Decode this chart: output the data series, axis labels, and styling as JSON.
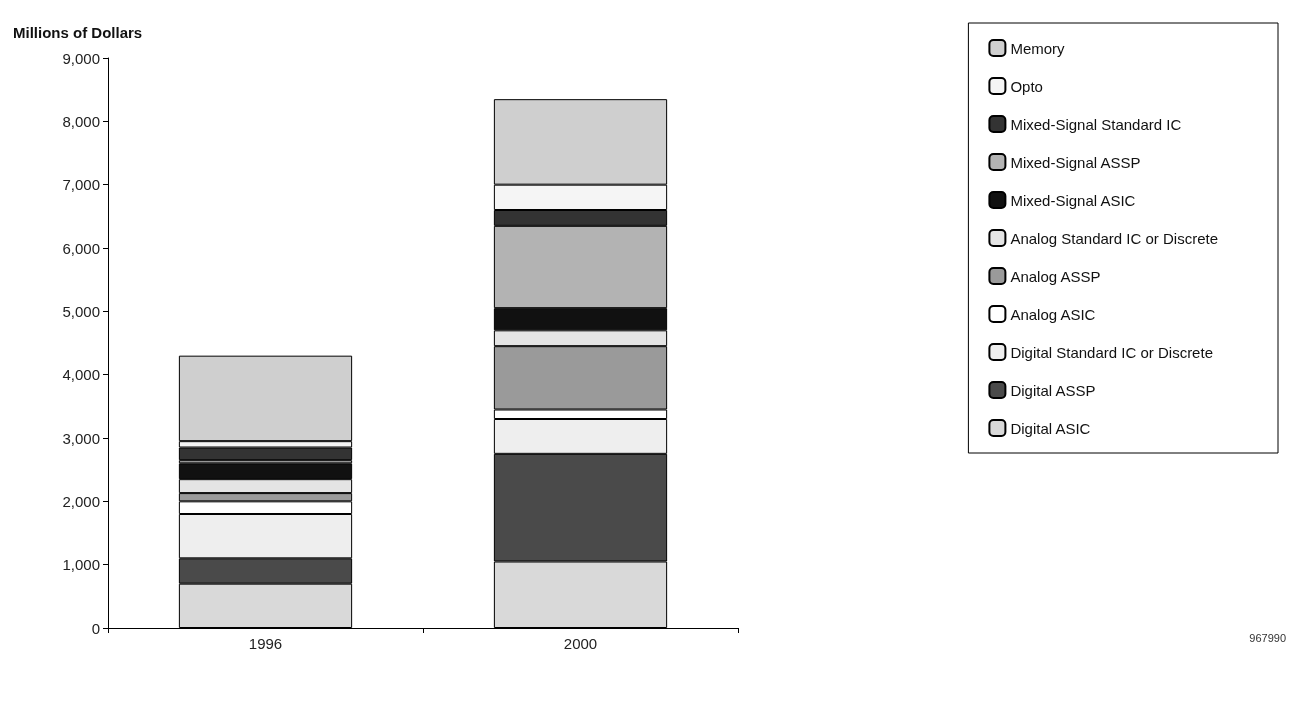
{
  "chart_data": {
    "type": "bar",
    "stacked": true,
    "ylabel": "Millions of Dollars",
    "categories": [
      "1996",
      "2000"
    ],
    "series": [
      {
        "name": "Digital ASIC",
        "color": "#d9d9d9",
        "values": [
          700,
          1050
        ]
      },
      {
        "name": "Digital ASSP",
        "color": "#4a4a4a",
        "values": [
          400,
          1700
        ]
      },
      {
        "name": "Digital Standard IC or Discrete",
        "color": "#eeeeee",
        "values": [
          700,
          550
        ]
      },
      {
        "name": "Analog ASIC",
        "color": "#ffffff",
        "values": [
          200,
          150
        ]
      },
      {
        "name": "Analog ASSP",
        "color": "#9a9a9a",
        "values": [
          130,
          1000
        ]
      },
      {
        "name": "Analog Standard IC or Discrete",
        "color": "#e4e4e4",
        "values": [
          220,
          250
        ]
      },
      {
        "name": "Mixed-Signal ASIC",
        "color": "#111111",
        "values": [
          250,
          350
        ]
      },
      {
        "name": "Mixed-Signal ASSP",
        "color": "#b3b3b3",
        "values": [
          50,
          1300
        ]
      },
      {
        "name": "Mixed-Signal Standard IC",
        "color": "#333333",
        "values": [
          200,
          250
        ]
      },
      {
        "name": "Opto",
        "color": "#f5f5f5",
        "values": [
          100,
          400
        ]
      },
      {
        "name": "Memory",
        "color": "#cfcfcf",
        "values": [
          1350,
          1350
        ]
      }
    ],
    "ylim": [
      0,
      9000
    ],
    "yticks": [
      0,
      {
        "value": 1000,
        "label": "1,000"
      },
      {
        "value": 2000,
        "label": "2,000"
      },
      {
        "value": 3000,
        "label": "3,000"
      },
      {
        "value": 4000,
        "label": "4,000"
      },
      {
        "value": 5000,
        "label": "5,000"
      },
      {
        "value": 6000,
        "label": "6,000"
      },
      {
        "value": 7000,
        "label": "7,000"
      },
      {
        "value": 8000,
        "label": "8,000"
      },
      {
        "value": 9000,
        "label": "9,000"
      }
    ],
    "grid": false,
    "legend": "right",
    "annotations": [
      "967990"
    ]
  }
}
